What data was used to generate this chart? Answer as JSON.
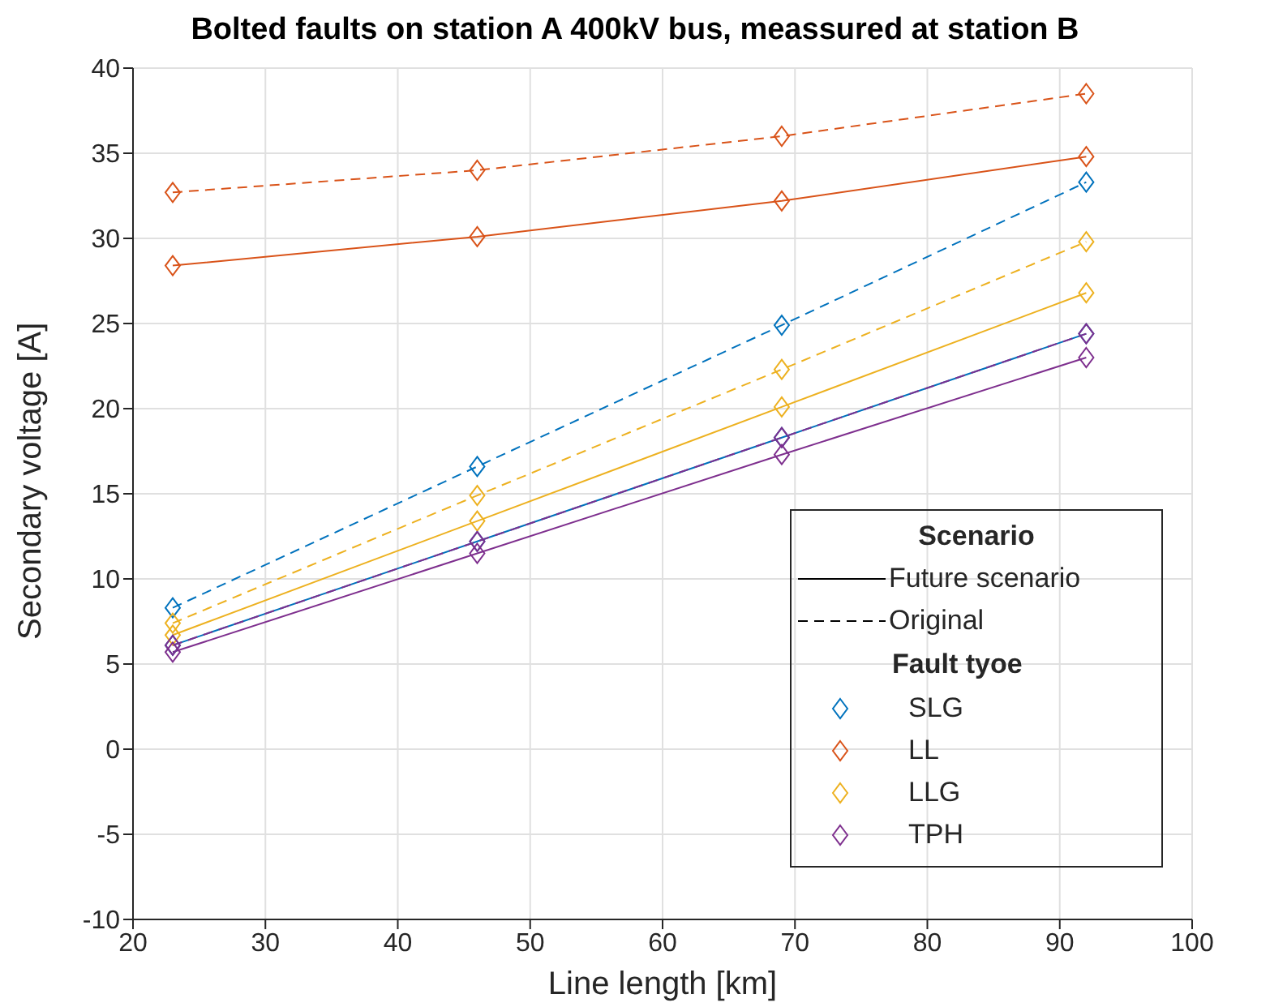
{
  "chart_data": {
    "type": "line",
    "title": "Bolted faults on station A 400kV bus, meassured at station B",
    "xlabel": "Line length [km]",
    "ylabel": "Secondary voltage [A]",
    "x": [
      23,
      46,
      69,
      92
    ],
    "series": [
      {
        "name": "SLG",
        "color": "#0072bd",
        "line_style": "solid",
        "values": [
          6.1,
          12.2,
          18.3,
          24.4
        ]
      },
      {
        "name": "LL",
        "color": "#d95319",
        "line_style": "solid",
        "values": [
          28.4,
          30.1,
          32.2,
          34.8
        ]
      },
      {
        "name": "LLG",
        "color": "#edb120",
        "line_style": "solid",
        "values": [
          6.7,
          13.4,
          20.1,
          26.8
        ]
      },
      {
        "name": "TPH",
        "color": "#7e2f8e",
        "line_style": "solid",
        "values": [
          5.7,
          11.5,
          17.3,
          23.0
        ]
      },
      {
        "color": "#0072bd",
        "line_style": "dashed",
        "values": [
          8.3,
          16.6,
          24.9,
          33.3
        ]
      },
      {
        "color": "#d95319",
        "line_style": "dashed",
        "values": [
          32.7,
          34.0,
          36.0,
          38.5
        ]
      },
      {
        "color": "#edb120",
        "line_style": "dashed",
        "values": [
          7.4,
          14.9,
          22.3,
          29.8
        ]
      },
      {
        "color": "#7e2f8e",
        "line_style": "dashed",
        "values": [
          6.1,
          12.2,
          18.3,
          24.4
        ]
      }
    ],
    "xlim": [
      20,
      100
    ],
    "xticks": [
      20,
      30,
      40,
      50,
      60,
      70,
      80,
      90,
      100
    ],
    "ylim": [
      -10,
      40
    ],
    "yticks": [
      -10,
      -5,
      0,
      5,
      10,
      15,
      20,
      25,
      30,
      35,
      40
    ],
    "grid": true,
    "marker": "diamond",
    "legend": "bottom right",
    "legend_title": "Fault tyoe",
    "annotations": [
      "Scenario",
      "Future scenario",
      "Original"
    ]
  }
}
